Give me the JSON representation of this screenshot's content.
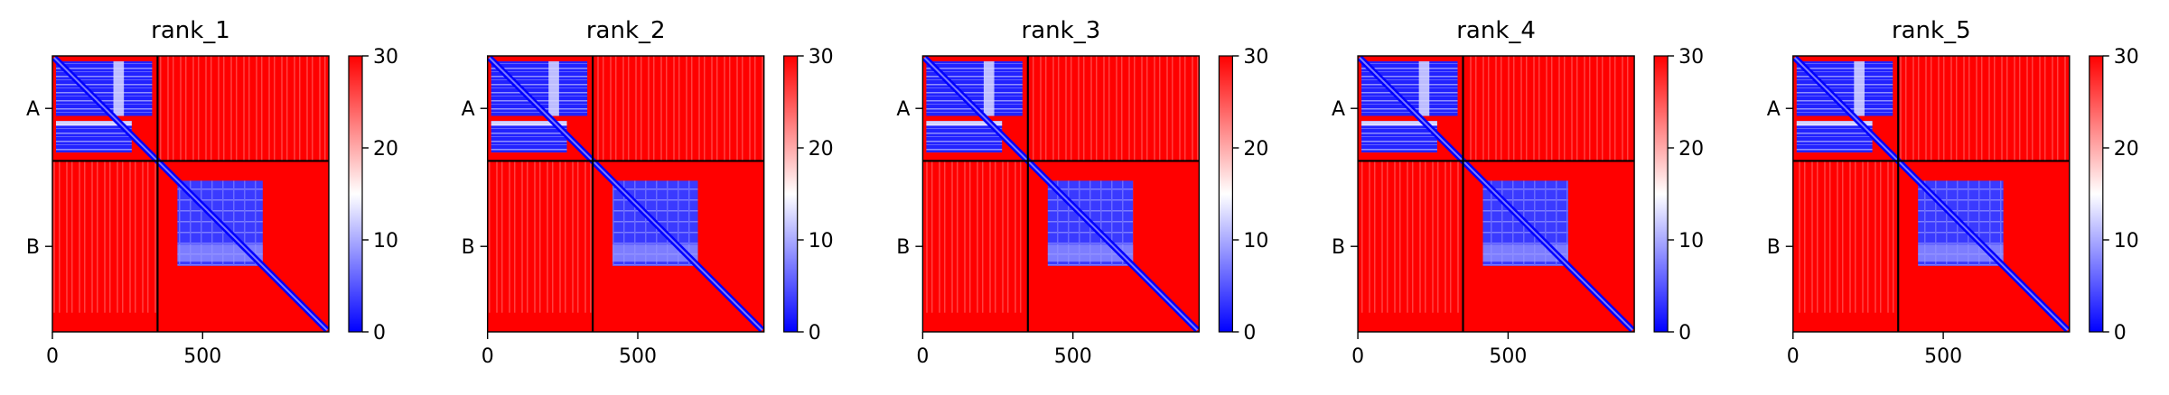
{
  "chart_data": [
    {
      "type": "heatmap",
      "title": "rank_1",
      "xticks": [
        0,
        500
      ],
      "xlim": [
        0,
        920
      ],
      "chain_labels": [
        "A",
        "B"
      ],
      "chain_boundary": 350,
      "colorbar": {
        "ticks": [
          0,
          10,
          20,
          30
        ],
        "vmin": 0,
        "vmax": 30,
        "colors": [
          "#0000ff",
          "#ffffff",
          "#ff0000"
        ]
      }
    },
    {
      "type": "heatmap",
      "title": "rank_2",
      "xticks": [
        0,
        500
      ],
      "xlim": [
        0,
        920
      ],
      "chain_labels": [
        "A",
        "B"
      ],
      "chain_boundary": 350,
      "colorbar": {
        "ticks": [
          0,
          10,
          20,
          30
        ],
        "vmin": 0,
        "vmax": 30,
        "colors": [
          "#0000ff",
          "#ffffff",
          "#ff0000"
        ]
      }
    },
    {
      "type": "heatmap",
      "title": "rank_3",
      "xticks": [
        0,
        500
      ],
      "xlim": [
        0,
        920
      ],
      "chain_labels": [
        "A",
        "B"
      ],
      "chain_boundary": 350,
      "colorbar": {
        "ticks": [
          0,
          10,
          20,
          30
        ],
        "vmin": 0,
        "vmax": 30,
        "colors": [
          "#0000ff",
          "#ffffff",
          "#ff0000"
        ]
      }
    },
    {
      "type": "heatmap",
      "title": "rank_4",
      "xticks": [
        0,
        500
      ],
      "xlim": [
        0,
        920
      ],
      "chain_labels": [
        "A",
        "B"
      ],
      "chain_boundary": 350,
      "colorbar": {
        "ticks": [
          0,
          10,
          20,
          30
        ],
        "vmin": 0,
        "vmax": 30,
        "colors": [
          "#0000ff",
          "#ffffff",
          "#ff0000"
        ]
      }
    },
    {
      "type": "heatmap",
      "title": "rank_5",
      "xticks": [
        0,
        500
      ],
      "xlim": [
        0,
        920
      ],
      "chain_labels": [
        "A",
        "B"
      ],
      "chain_boundary": 350,
      "colorbar": {
        "ticks": [
          0,
          10,
          20,
          30
        ],
        "vmin": 0,
        "vmax": 30,
        "colors": [
          "#0000ff",
          "#ffffff",
          "#ff0000"
        ]
      }
    }
  ]
}
